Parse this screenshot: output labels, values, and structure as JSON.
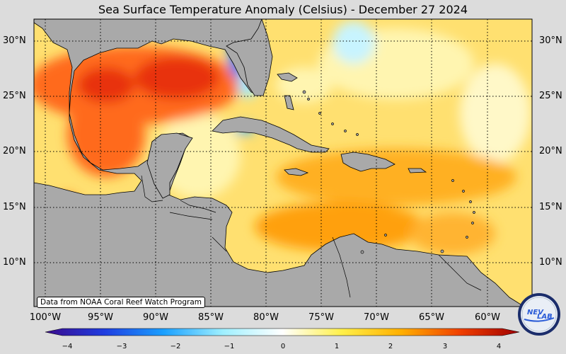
{
  "title": "Sea Surface Temperature Anomaly (Celsius) - December 27 2024",
  "lat_labels": [
    "30°N",
    "25°N",
    "20°N",
    "15°N",
    "10°N"
  ],
  "lon_labels": [
    "100°W",
    "95°W",
    "90°W",
    "85°W",
    "80°W",
    "75°W",
    "70°W",
    "65°W",
    "60°W"
  ],
  "credit": "Data from NOAA Coral Reef Watch Program",
  "colorbar": {
    "ticks": [
      "−4",
      "−3",
      "−2",
      "−1",
      "0",
      "1",
      "2",
      "3",
      "4"
    ],
    "min": -4,
    "max": 4,
    "colors": [
      "#3a0a8c",
      "#1f3de0",
      "#1aa0ff",
      "#9ff0ff",
      "#ffffff",
      "#fff04a",
      "#ffb000",
      "#f04000",
      "#a00000"
    ]
  },
  "logo": {
    "text_top": "NEV",
    "text_bottom": "LAB"
  },
  "colors": {
    "land": "#a9a9a9",
    "water_base": "#ffe27a",
    "warm": "#ff5a1a",
    "hot": "#e02b10",
    "cool": "#8fe8ff",
    "cold": "#1e8cff"
  }
}
